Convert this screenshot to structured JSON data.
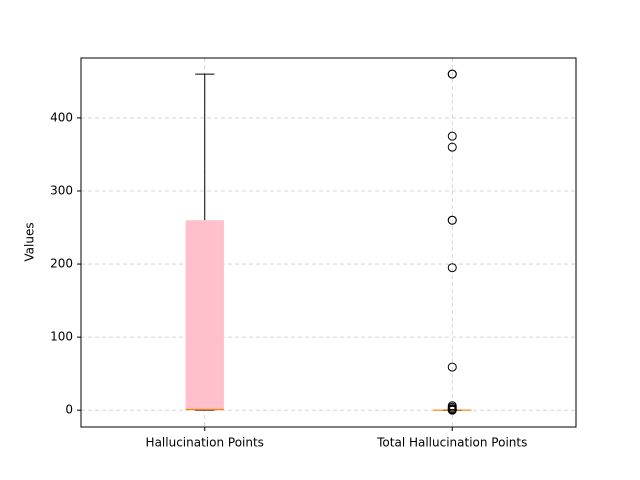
{
  "chart_data": {
    "type": "box",
    "categories": [
      "Hallucination Points",
      "Total Hallucination Points"
    ],
    "ylabel": "Values",
    "ylim": [
      -23,
      482
    ],
    "yticks": [
      0,
      100,
      200,
      300,
      400
    ],
    "grid": true,
    "color": "#ffc0cb",
    "median_color": "#ff7f0e",
    "boxes": [
      {
        "min": 0,
        "q1": 0,
        "median": 1,
        "q3": 260,
        "max": 460,
        "outliers": []
      },
      {
        "min": 0,
        "q1": 0,
        "median": 0,
        "q3": 0,
        "max": 0,
        "outliers": [
          460,
          460,
          375,
          360,
          260,
          260,
          195,
          59,
          6,
          4,
          2,
          1,
          0
        ]
      }
    ]
  }
}
